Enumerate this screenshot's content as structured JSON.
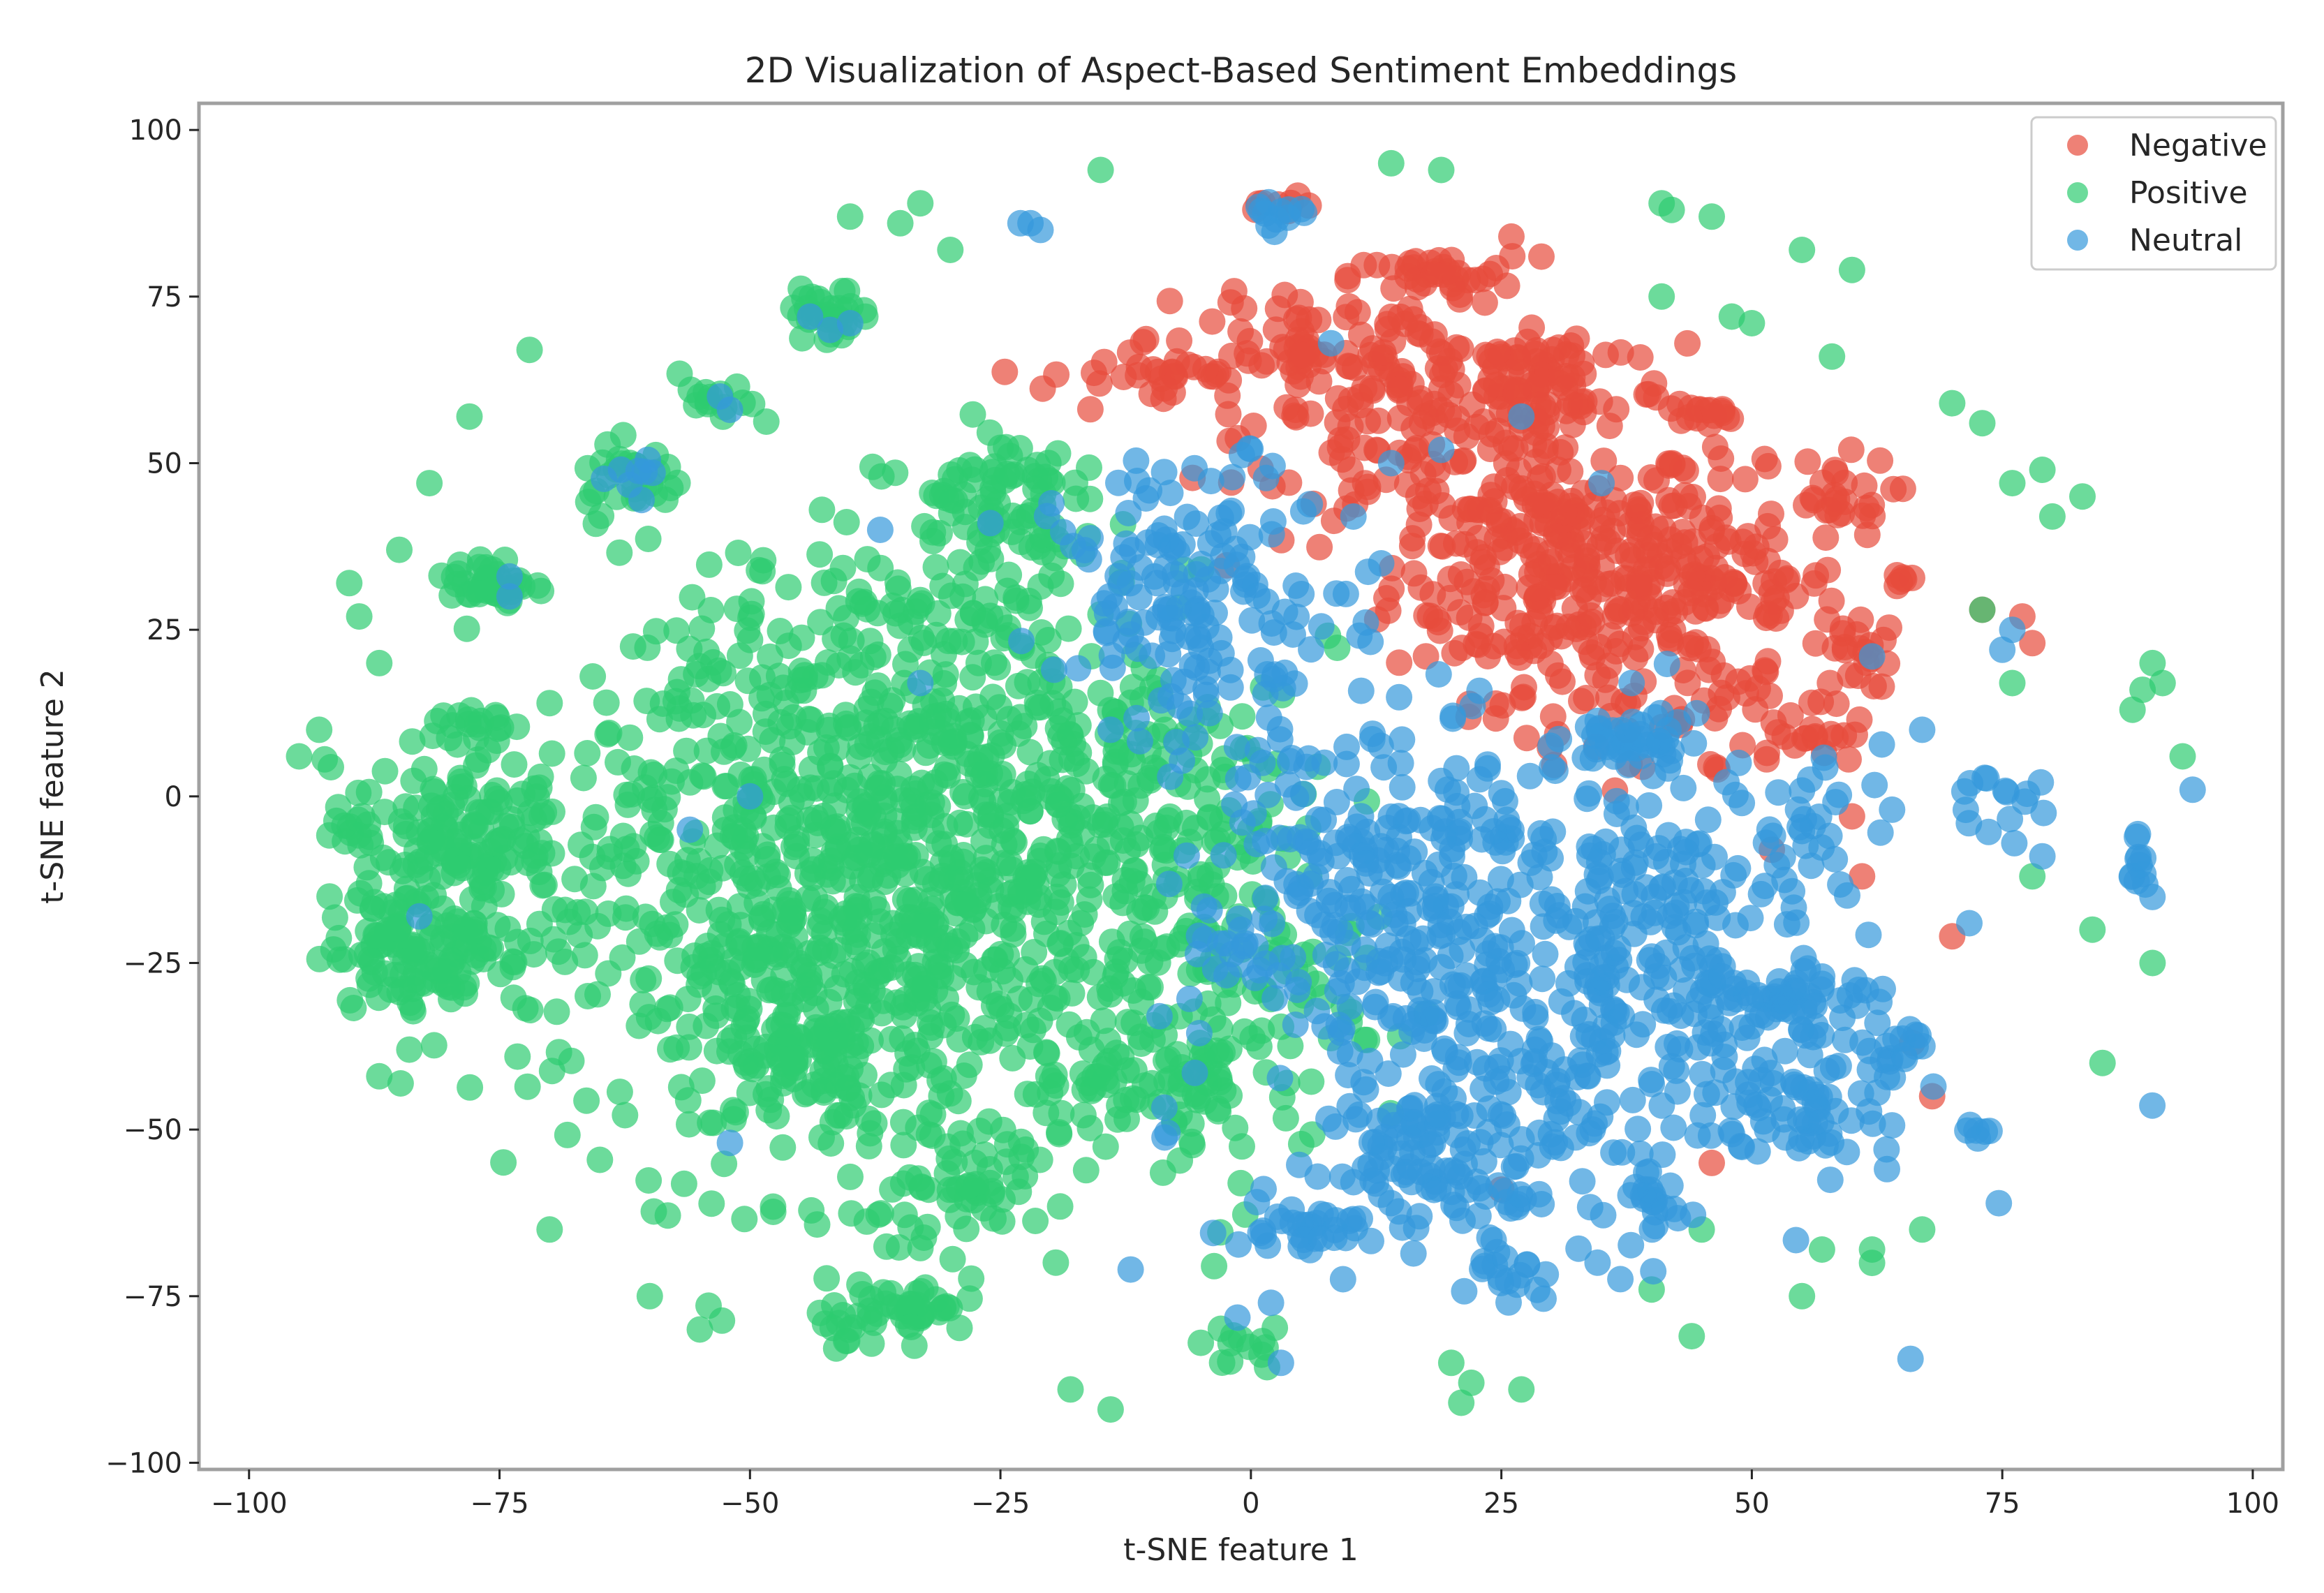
{
  "chart_data": {
    "type": "scatter",
    "title": "2D Visualization of Aspect-Based Sentiment Embeddings",
    "xlabel": "t-SNE feature 1",
    "ylabel": "t-SNE feature 2",
    "xlim": [
      -105,
      103
    ],
    "ylim": [
      -101,
      104
    ],
    "xticks": [
      -100,
      -75,
      -50,
      -25,
      0,
      25,
      50,
      75,
      100
    ],
    "yticks": [
      -100,
      -75,
      -50,
      -25,
      0,
      25,
      50,
      75,
      100
    ],
    "xtick_labels": [
      "−100",
      "−75",
      "−50",
      "−25",
      "0",
      "25",
      "50",
      "75",
      "100"
    ],
    "ytick_labels": [
      "−100",
      "−75",
      "−50",
      "−25",
      "0",
      "25",
      "50",
      "75",
      "100"
    ],
    "grid": false,
    "legend_position": "top-right",
    "point_alpha": 0.7,
    "series": [
      {
        "name": "Negative",
        "color": "#e74c3c",
        "clusters": [
          {
            "center": [
              30,
              35
            ],
            "sd": [
              8,
              10
            ],
            "n": 260
          },
          {
            "center": [
              45,
              32
            ],
            "sd": [
              7,
              8
            ],
            "n": 130
          },
          {
            "center": [
              18,
              55
            ],
            "sd": [
              9,
              8
            ],
            "n": 110
          },
          {
            "center": [
              12,
              64
            ],
            "sd": [
              10,
              5
            ],
            "n": 70
          },
          {
            "center": [
              18,
              78
            ],
            "sd": [
              4,
              1.5
            ],
            "n": 35
          },
          {
            "center": [
              30,
              62
            ],
            "sd": [
              6,
              5
            ],
            "n": 60
          },
          {
            "center": [
              -10,
              63
            ],
            "sd": [
              5,
              3
            ],
            "n": 30
          },
          {
            "center": [
              5,
              70
            ],
            "sd": [
              5,
              4
            ],
            "n": 35
          },
          {
            "center": [
              45,
              57
            ],
            "sd": [
              2,
              1
            ],
            "n": 15
          },
          {
            "center": [
              58,
              45
            ],
            "sd": [
              3,
              3
            ],
            "n": 25
          },
          {
            "center": [
              60,
              22
            ],
            "sd": [
              2,
              3
            ],
            "n": 20
          },
          {
            "center": [
              40,
              12
            ],
            "sd": [
              8,
              5
            ],
            "n": 40
          },
          {
            "center": [
              55,
              10
            ],
            "sd": [
              4,
              4
            ],
            "n": 20
          },
          {
            "center": [
              3,
              88
            ],
            "sd": [
              2,
              1
            ],
            "n": 8
          },
          {
            "center": [
              65,
              33
            ],
            "sd": [
              1,
              1
            ],
            "n": 6
          }
        ],
        "points": [
          [
            26,
            84
          ],
          [
            29,
            81
          ],
          [
            33,
            65
          ],
          [
            52,
            -8
          ],
          [
            60,
            -3
          ],
          [
            73,
            28
          ],
          [
            77,
            27
          ],
          [
            61,
            -12
          ],
          [
            46,
            -55
          ],
          [
            25,
            -59
          ],
          [
            68,
            -45
          ],
          [
            70,
            -21
          ],
          [
            78,
            23
          ],
          [
            66,
            -37
          ]
        ]
      },
      {
        "name": "Positive",
        "color": "#2ecc71",
        "clusters": [
          {
            "center": [
              -35,
              -20
            ],
            "sd": [
              14,
              20
            ],
            "n": 600
          },
          {
            "center": [
              -55,
              -10
            ],
            "sd": [
              9,
              22
            ],
            "n": 250
          },
          {
            "center": [
              -20,
              0
            ],
            "sd": [
              12,
              22
            ],
            "n": 300
          },
          {
            "center": [
              -5,
              -25
            ],
            "sd": [
              8,
              18
            ],
            "n": 150
          },
          {
            "center": [
              -35,
              20
            ],
            "sd": [
              8,
              10
            ],
            "n": 100
          },
          {
            "center": [
              -80,
              -5
            ],
            "sd": [
              6,
              5
            ],
            "n": 130
          },
          {
            "center": [
              -82,
              -22
            ],
            "sd": [
              5,
              5
            ],
            "n": 140
          },
          {
            "center": [
              -26,
              45
            ],
            "sd": [
              4,
              5
            ],
            "n": 80
          },
          {
            "center": [
              -76,
              32
            ],
            "sd": [
              2,
              2
            ],
            "n": 40
          },
          {
            "center": [
              -62,
              48
            ],
            "sd": [
              3,
              3
            ],
            "n": 30
          },
          {
            "center": [
              -42,
              72
            ],
            "sd": [
              2,
              2
            ],
            "n": 30
          },
          {
            "center": [
              -53,
              59
            ],
            "sd": [
              2,
              2
            ],
            "n": 15
          },
          {
            "center": [
              -78,
              10
            ],
            "sd": [
              2,
              2
            ],
            "n": 20
          },
          {
            "center": [
              -35,
              -77
            ],
            "sd": [
              4,
              2
            ],
            "n": 50
          },
          {
            "center": [
              -27,
              -60
            ],
            "sd": [
              5,
              3
            ],
            "n": 40
          },
          {
            "center": [
              -45,
              -40
            ],
            "sd": [
              4,
              4
            ],
            "n": 60
          },
          {
            "center": [
              -10,
              -45
            ],
            "sd": [
              6,
              5
            ],
            "n": 40
          },
          {
            "center": [
              0,
              -82
            ],
            "sd": [
              2,
              2
            ],
            "n": 12
          }
        ],
        "points": [
          [
            -85,
            37
          ],
          [
            -95,
            6
          ],
          [
            -90,
            32
          ],
          [
            -89,
            27
          ],
          [
            -87,
            20
          ],
          [
            -82,
            47
          ],
          [
            -78,
            57
          ],
          [
            -72,
            67
          ],
          [
            -70,
            14
          ],
          [
            -93,
            10
          ],
          [
            -84,
            -38
          ],
          [
            -87,
            -42
          ],
          [
            -70,
            -65
          ],
          [
            -60,
            -75
          ],
          [
            -55,
            -80
          ],
          [
            -35,
            86
          ],
          [
            -40,
            87
          ],
          [
            -33,
            89
          ],
          [
            -30,
            82
          ],
          [
            -15,
            94
          ],
          [
            14,
            95
          ],
          [
            19,
            94
          ],
          [
            42,
            88
          ],
          [
            46,
            87
          ],
          [
            55,
            82
          ],
          [
            60,
            79
          ],
          [
            70,
            59
          ],
          [
            73,
            56
          ],
          [
            76,
            47
          ],
          [
            79,
            49
          ],
          [
            80,
            42
          ],
          [
            83,
            45
          ],
          [
            90,
            20
          ],
          [
            88,
            13
          ],
          [
            91,
            17
          ],
          [
            93,
            6
          ],
          [
            89,
            16
          ],
          [
            85,
            -40
          ],
          [
            90,
            -25
          ],
          [
            55,
            -75
          ],
          [
            57,
            -68
          ],
          [
            62,
            -68
          ],
          [
            67,
            -65
          ],
          [
            62,
            -70
          ],
          [
            44,
            -81
          ],
          [
            20,
            -85
          ],
          [
            22,
            -88
          ],
          [
            27,
            -89
          ],
          [
            21,
            -91
          ],
          [
            -14,
            -92
          ],
          [
            -18,
            -89
          ],
          [
            -5,
            -82
          ],
          [
            40,
            -74
          ],
          [
            45,
            -65
          ],
          [
            48,
            72
          ],
          [
            50,
            71
          ],
          [
            41,
            75
          ],
          [
            58,
            66
          ],
          [
            76,
            17
          ],
          [
            78,
            -12
          ],
          [
            84,
            -20
          ],
          [
            41,
            89
          ],
          [
            73,
            28
          ]
        ]
      },
      {
        "name": "Neutral",
        "color": "#3498db",
        "clusters": [
          {
            "center": [
              30,
              -30
            ],
            "sd": [
              14,
              18
            ],
            "n": 400
          },
          {
            "center": [
              10,
              -15
            ],
            "sd": [
              8,
              15
            ],
            "n": 200
          },
          {
            "center": [
              -5,
              30
            ],
            "sd": [
              7,
              10
            ],
            "n": 160
          },
          {
            "center": [
              20,
              -55
            ],
            "sd": [
              6,
              5
            ],
            "n": 80
          },
          {
            "center": [
              55,
              -45
            ],
            "sd": [
              4,
              5
            ],
            "n": 60
          },
          {
            "center": [
              55,
              -30
            ],
            "sd": [
              4,
              3
            ],
            "n": 50
          },
          {
            "center": [
              38,
              8
            ],
            "sd": [
              3,
              2
            ],
            "n": 40
          },
          {
            "center": [
              40,
              -15
            ],
            "sd": [
              6,
              6
            ],
            "n": 60
          },
          {
            "center": [
              5,
              -65
            ],
            "sd": [
              3,
              2
            ],
            "n": 30
          },
          {
            "center": [
              2,
              87
            ],
            "sd": [
              1.5,
              1.5
            ],
            "n": 12
          },
          {
            "center": [
              65,
              -38
            ],
            "sd": [
              2,
              2
            ],
            "n": 15
          },
          {
            "center": [
              55,
              -5
            ],
            "sd": [
              3,
              5
            ],
            "n": 25
          },
          {
            "center": [
              75,
              0
            ],
            "sd": [
              3,
              3
            ],
            "n": 15
          },
          {
            "center": [
              88,
              -12
            ],
            "sd": [
              1,
              3
            ],
            "n": 12
          },
          {
            "center": [
              -62,
              48
            ],
            "sd": [
              1.5,
              1.5
            ],
            "n": 8
          },
          {
            "center": [
              40,
              -62
            ],
            "sd": [
              2,
              3
            ],
            "n": 20
          },
          {
            "center": [
              25,
              -73
            ],
            "sd": [
              2,
              2
            ],
            "n": 15
          },
          {
            "center": [
              72,
              -50
            ],
            "sd": [
              1,
              1
            ],
            "n": 6
          }
        ],
        "points": [
          [
            -22,
            86
          ],
          [
            -21,
            85
          ],
          [
            -23,
            86
          ],
          [
            -42,
            70
          ],
          [
            -44,
            72
          ],
          [
            -40,
            71
          ],
          [
            -52,
            58
          ],
          [
            -53,
            60
          ],
          [
            -74,
            30
          ],
          [
            -74,
            33
          ],
          [
            -83,
            -18
          ],
          [
            -26,
            41
          ],
          [
            -37,
            40
          ],
          [
            -33,
            17
          ],
          [
            -50,
            0
          ],
          [
            -56,
            -5
          ],
          [
            -52,
            -52
          ],
          [
            -12,
            -71
          ],
          [
            2,
            -76
          ],
          [
            3,
            -85
          ],
          [
            -8,
            15
          ],
          [
            -14,
            10
          ],
          [
            37,
            -8
          ],
          [
            47,
            -27
          ],
          [
            64,
            -2
          ],
          [
            67,
            10
          ],
          [
            62,
            21
          ],
          [
            79,
            -9
          ],
          [
            94,
            1
          ],
          [
            76,
            25
          ],
          [
            75,
            22
          ],
          [
            38,
            17
          ],
          [
            27,
            57
          ],
          [
            19,
            52
          ],
          [
            8,
            68
          ],
          [
            14,
            50
          ],
          [
            35,
            47
          ]
        ]
      }
    ]
  }
}
